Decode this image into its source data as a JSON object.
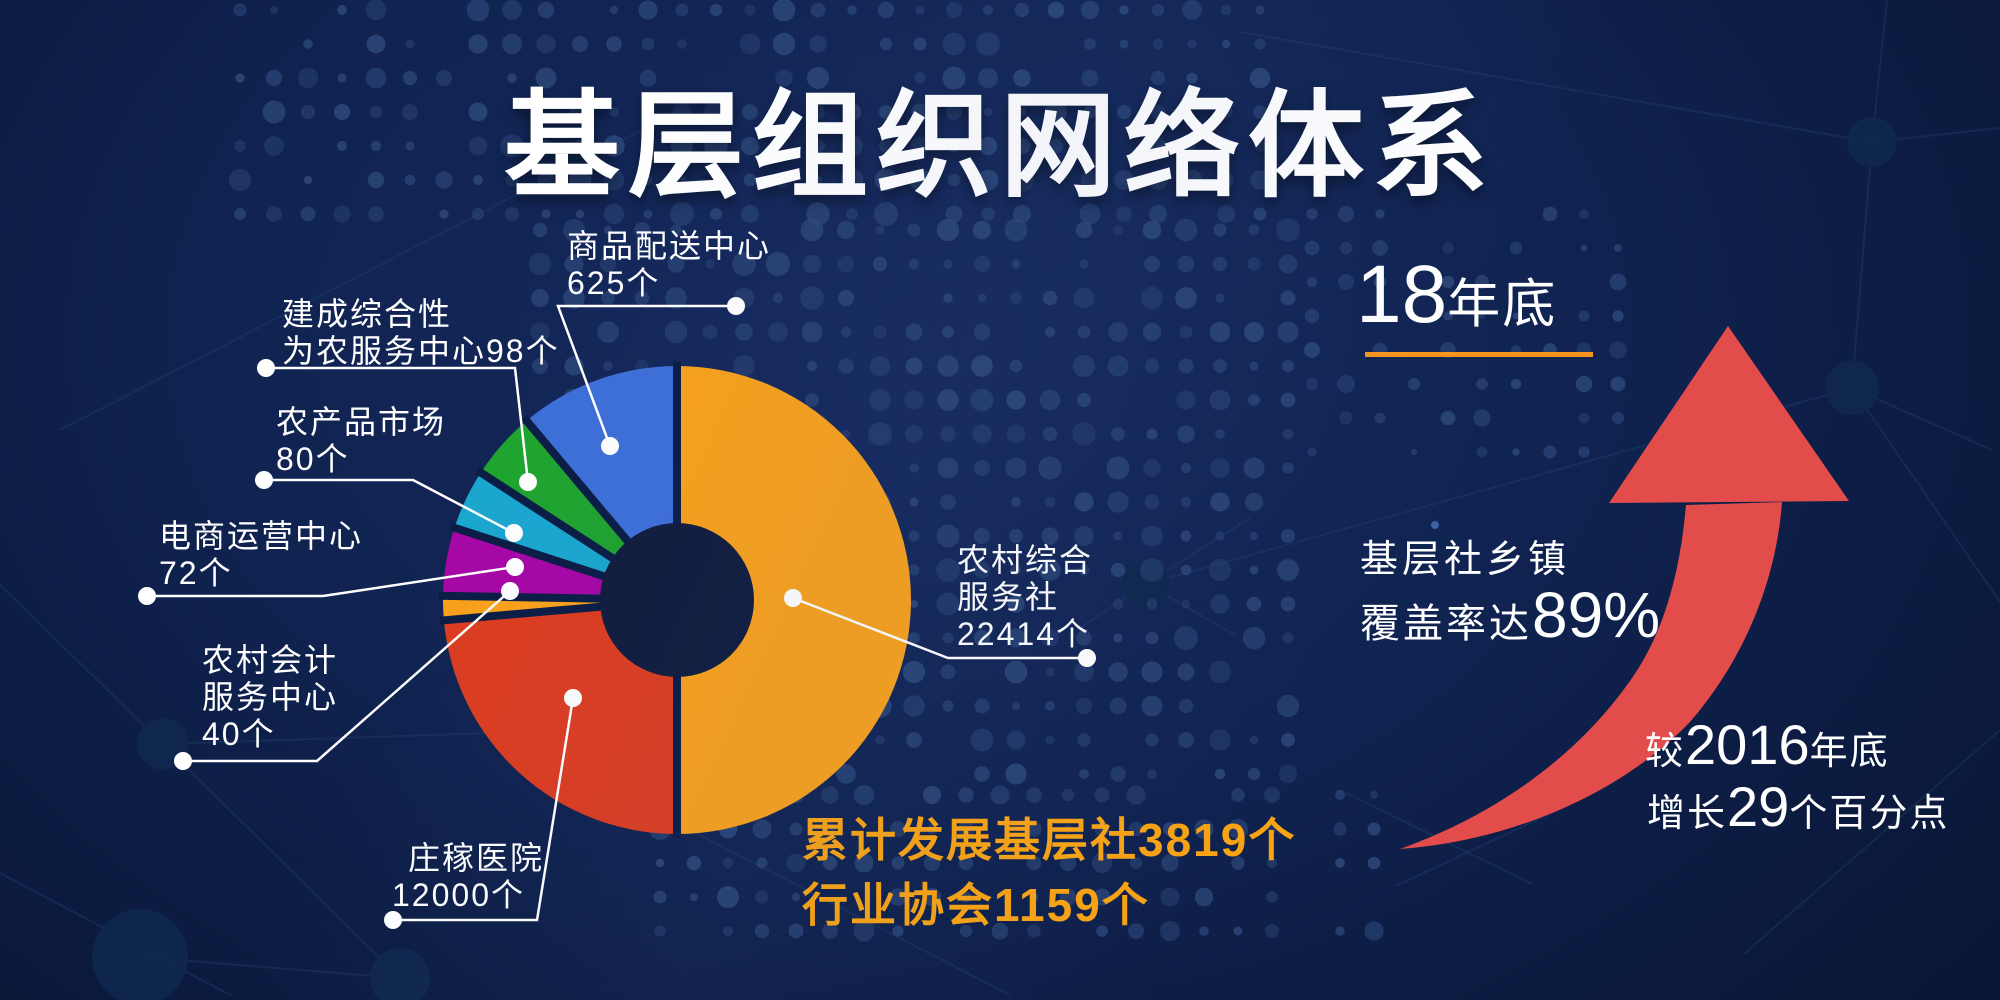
{
  "title": "基层组织网络体系",
  "chart_data": {
    "type": "pie",
    "title": "基层组织网络体系",
    "unit": "个",
    "legend_position": "callout-labels",
    "donut": true,
    "slices": [
      {
        "label": "农村综合服务社",
        "value": 22414,
        "color": "#F9A11B",
        "display_angles": {
          "start": 0,
          "end": 180
        },
        "label_lines": [
          "农村综合",
          "服务社",
          "22414个"
        ]
      },
      {
        "label": "庄稼医院",
        "value": 12000,
        "color": "#DC3D20",
        "display_angles": {
          "start": 180,
          "end": 265
        },
        "label_lines": [
          "庄稼医院",
          "12000个"
        ]
      },
      {
        "label": "农村会计服务中心",
        "value": 40,
        "color": "#F9A11B",
        "display_angles": {
          "start": 265,
          "end": 271
        },
        "label_lines": [
          "农村会计",
          "服务中心",
          "40个"
        ]
      },
      {
        "label": "电商运营中心",
        "value": 72,
        "color": "#A607A5",
        "display_angles": {
          "start": 271,
          "end": 288
        },
        "label_lines": [
          "电商运营中心",
          "72个"
        ]
      },
      {
        "label": "农产品市场",
        "value": 80,
        "color": "#1BA6CE",
        "display_angles": {
          "start": 288,
          "end": 303
        },
        "label_lines": [
          "农产品市场",
          "80个"
        ]
      },
      {
        "label": "建成综合性为农服务中心",
        "value": 98,
        "color": "#1FA42F",
        "display_angles": {
          "start": 303,
          "end": 320
        },
        "label_lines": [
          "建成综合性",
          "为农服务中心98个"
        ]
      },
      {
        "label": "商品配送中心",
        "value": 625,
        "color": "#3E6FD7",
        "display_angles": {
          "start": 320,
          "end": 360
        },
        "label_lines": [
          "商品配送中心",
          "625个"
        ]
      }
    ]
  },
  "right_panel": {
    "period_year": "18",
    "period_suffix": "年底",
    "coverage_line1": "基层社乡镇",
    "coverage_prefix": "覆盖率达",
    "coverage_value": "89%",
    "compare1_pre": "较",
    "compare1_num": "2016",
    "compare1_post": "年底",
    "compare2_pre": "增长",
    "compare2_num": "29",
    "compare2_post": "个百分点"
  },
  "footer": {
    "line1": "累计发展基层社3819个",
    "line2": "行业协会1159个"
  },
  "colors": {
    "background_navy": "#0E2150",
    "accent_orange": "#F7941D",
    "footer_orange": "#F8A314",
    "arrow_red": "#E24C4B",
    "leader_white": "#FFFFFF",
    "halftone_dot": "#2C4778",
    "donut_hole": "#111C3D"
  },
  "icons": {
    "growth_arrow": "curved arrow pointing up-right, indicates growth"
  }
}
